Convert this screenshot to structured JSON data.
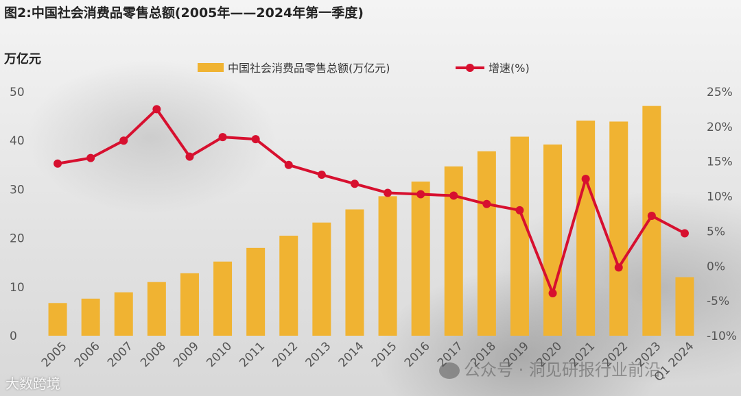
{
  "header": {
    "title": "图2:中国社会消费品零售总额(2005年——2024年第一季度)",
    "unit_label": "万亿元"
  },
  "watermarks": {
    "wechat": "公众号 · 洞见研报行业前沿",
    "brand": "大数跨境"
  },
  "colors": {
    "bar": "#F0B332",
    "line": "#D7102F",
    "axis_text": "#555555"
  },
  "chart_data": {
    "type": "bar+line",
    "title": "图2:中国社会消费品零售总额(2005年——2024年第一季度)",
    "ylabel": "万亿元",
    "categories": [
      "2005",
      "2006",
      "2007",
      "2008",
      "2009",
      "2010",
      "2011",
      "2012",
      "2013",
      "2014",
      "2015",
      "2016",
      "2017",
      "2018",
      "2019",
      "2020",
      "2021",
      "2022",
      "2023",
      "Q1 2024"
    ],
    "y_left": {
      "min": 0,
      "max": 50,
      "ticks": [
        0,
        10,
        20,
        30,
        40,
        50
      ]
    },
    "y_right": {
      "min": -10,
      "max": 25,
      "ticks": [
        -10,
        -5,
        0,
        5,
        10,
        15,
        20,
        25
      ],
      "tick_labels": [
        "-10%",
        "-5%",
        "0%",
        "5%",
        "10%",
        "15%",
        "20%",
        "25%"
      ]
    },
    "legend_position": "top-center",
    "grid": false,
    "series": [
      {
        "name": "中国社会消费品零售总额(万亿元)",
        "type": "bar",
        "axis": "left",
        "values": [
          6.7,
          7.6,
          8.9,
          11.0,
          12.8,
          15.2,
          18.0,
          20.5,
          23.2,
          25.9,
          28.6,
          31.6,
          34.7,
          37.8,
          40.8,
          39.2,
          44.1,
          43.9,
          47.1,
          12.0
        ]
      },
      {
        "name": "增速(%)",
        "type": "line",
        "axis": "right",
        "values": [
          14.7,
          15.5,
          18.0,
          22.5,
          15.7,
          18.5,
          18.2,
          14.5,
          13.1,
          11.8,
          10.5,
          10.3,
          10.1,
          8.9,
          8.0,
          -3.9,
          12.5,
          -0.2,
          7.2,
          4.7
        ]
      }
    ]
  }
}
